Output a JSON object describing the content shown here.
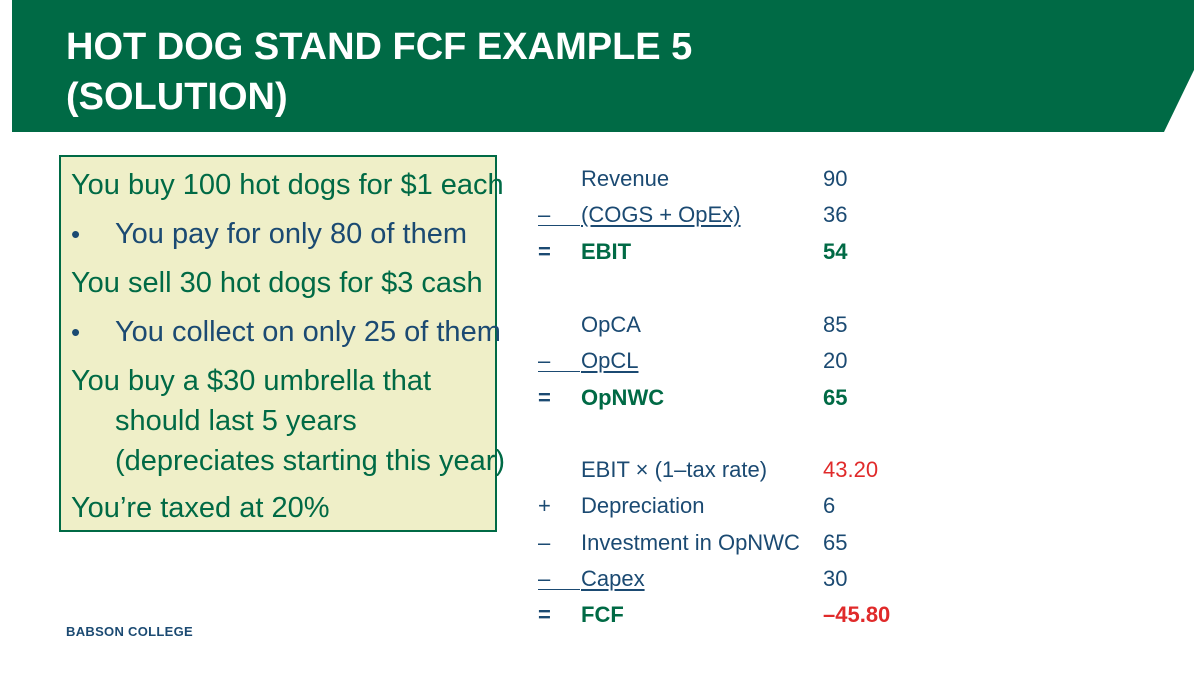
{
  "slide": {
    "title_line1": "HOT DOG STAND FCF EXAMPLE 5",
    "title_line2": "(SOLUTION)",
    "footer": "BABSON COLLEGE",
    "colors": {
      "brand_green": "#006a45",
      "text_blue": "#1b4a72",
      "box_fill": "#efefc8",
      "negative_red": "#e02a2a"
    }
  },
  "problem": {
    "line1": "You buy 100 hot dogs for $1 each",
    "line2": "You pay for only 80 of them",
    "line3": "You sell 30 hot dogs for $3 cash",
    "line4": "You collect on only 25 of them",
    "line5": "You buy a $30 umbrella that",
    "line6": "should last 5 years",
    "line7": "(depreciates starting this year)",
    "line8": "You’re taxed at 20%",
    "bullet": "•"
  },
  "ebit": {
    "revenue": {
      "op": "",
      "label": "Revenue",
      "value": "90"
    },
    "costs": {
      "op": "–",
      "label": "(COGS + OpEx)",
      "value": "36"
    },
    "total": {
      "op": "=",
      "label": "EBIT",
      "value": "54"
    }
  },
  "opnwc": {
    "opca": {
      "op": "",
      "label": "OpCA",
      "value": "85"
    },
    "opcl": {
      "op": "–",
      "label": "OpCL",
      "value": "20"
    },
    "total": {
      "op": "=",
      "label": "OpNWC",
      "value": "65"
    }
  },
  "fcf": {
    "nopat": {
      "op": "",
      "label": "EBIT × (1–tax rate)",
      "value": "43.20"
    },
    "depreciation": {
      "op": "+",
      "label": "Depreciation",
      "value": "6"
    },
    "investment": {
      "op": "–",
      "label": "Investment in OpNWC",
      "value": "65"
    },
    "capex": {
      "op": "–",
      "label": "Capex",
      "value": "30"
    },
    "total": {
      "op": "=",
      "label": "FCF",
      "value": "–45.80"
    }
  }
}
